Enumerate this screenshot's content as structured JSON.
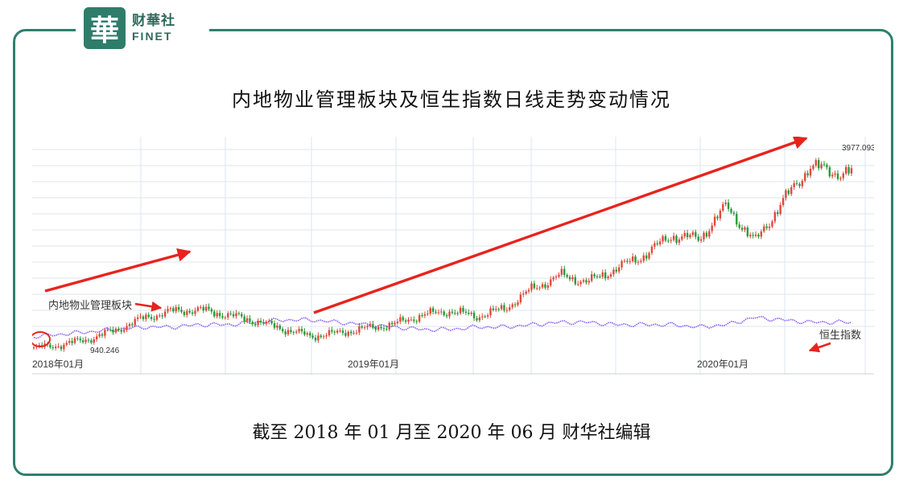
{
  "logo": {
    "mark": "華",
    "cn": "财華社",
    "en": "FINET"
  },
  "title": "内地物业管理板块及恒生指数日线走势变动情况",
  "footer": "截至 2018 年 01 月至 2020 年 06 月 财华社编辑",
  "chart_data": {
    "type": "line",
    "x_ticks": [
      "2018年01月",
      "2019年01月",
      "2020年01月"
    ],
    "annotations": {
      "max_label": "3977.093",
      "min_label": "940.246",
      "sector_label": "内地物业管理板块",
      "hsi_label": "恒生指数"
    },
    "series": [
      {
        "name": "内地物业管理板块",
        "type": "candlestick",
        "x": [
          "2018-01",
          "2018-02",
          "2018-03",
          "2018-04",
          "2018-05",
          "2018-06",
          "2018-07",
          "2018-08",
          "2018-09",
          "2018-10",
          "2018-11",
          "2018-12",
          "2019-01",
          "2019-02",
          "2019-03",
          "2019-04",
          "2019-05",
          "2019-06",
          "2019-07",
          "2019-08",
          "2019-09",
          "2019-10",
          "2019-11",
          "2019-12",
          "2020-01",
          "2020-02",
          "2020-03",
          "2020-04",
          "2020-05",
          "2020-06"
        ],
        "values": [
          1000,
          1050,
          1140,
          1280,
          1460,
          1560,
          1580,
          1500,
          1410,
          1290,
          1180,
          1230,
          1300,
          1360,
          1500,
          1560,
          1480,
          1600,
          1900,
          2100,
          2000,
          2200,
          2400,
          2700,
          2650,
          3150,
          2600,
          3200,
          3750,
          3650
        ]
      },
      {
        "name": "恒生指数",
        "type": "line",
        "color": "#8a5cf5",
        "values": [
          0.84,
          0.83,
          0.82,
          0.81,
          0.8,
          0.8,
          0.79,
          0.79,
          0.78,
          0.77,
          0.77,
          0.78,
          0.79,
          0.8,
          0.81,
          0.81,
          0.8,
          0.8,
          0.79,
          0.78,
          0.78,
          0.79,
          0.79,
          0.79,
          0.8,
          0.79,
          0.76,
          0.77,
          0.78,
          0.78
        ]
      }
    ],
    "colors": {
      "up": "#e04a3c",
      "down": "#2a9a3a",
      "arrow": "#e8231e",
      "grid": "#dde6f2"
    }
  }
}
